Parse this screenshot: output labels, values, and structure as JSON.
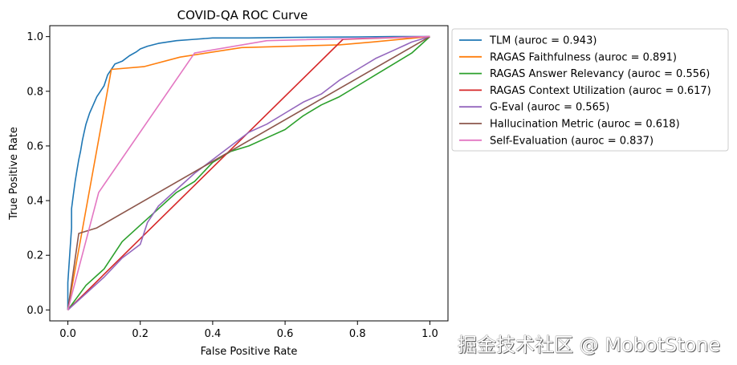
{
  "chart_data": {
    "type": "line",
    "title": "COVID-QA ROC Curve",
    "xlabel": "False Positive Rate",
    "ylabel": "True Positive Rate",
    "xlim": [
      -0.05,
      1.05
    ],
    "ylim": [
      -0.04,
      1.04
    ],
    "xticks": [
      "0.0",
      "0.2",
      "0.4",
      "0.6",
      "0.8",
      "1.0"
    ],
    "yticks": [
      "0.0",
      "0.2",
      "0.4",
      "0.6",
      "0.8",
      "1.0"
    ],
    "legend_position": "outside-right-top",
    "grid": false,
    "series": [
      {
        "name": "TLM (auroc = 0.943)",
        "color": "#1f77b4",
        "x": [
          0.0,
          0.0,
          0.005,
          0.01,
          0.01,
          0.015,
          0.02,
          0.025,
          0.03,
          0.035,
          0.04,
          0.045,
          0.05,
          0.06,
          0.07,
          0.08,
          0.09,
          0.1,
          0.11,
          0.12,
          0.13,
          0.15,
          0.17,
          0.19,
          0.2,
          0.22,
          0.25,
          0.3,
          0.35,
          0.4,
          0.45,
          0.5,
          0.6,
          0.7,
          0.8,
          0.9,
          1.0
        ],
        "y": [
          0.0,
          0.1,
          0.2,
          0.3,
          0.37,
          0.42,
          0.47,
          0.51,
          0.55,
          0.58,
          0.62,
          0.65,
          0.68,
          0.72,
          0.75,
          0.78,
          0.8,
          0.82,
          0.86,
          0.88,
          0.9,
          0.91,
          0.93,
          0.945,
          0.955,
          0.965,
          0.975,
          0.985,
          0.99,
          0.995,
          0.995,
          0.995,
          0.997,
          0.998,
          0.999,
          1.0,
          1.0
        ]
      },
      {
        "name": "RAGAS Faithfulness (auroc = 0.891)",
        "color": "#ff7f0e",
        "x": [
          0.0,
          0.12,
          0.21,
          0.31,
          0.48,
          0.75,
          0.84,
          1.0
        ],
        "y": [
          0.0,
          0.88,
          0.89,
          0.925,
          0.96,
          0.97,
          0.98,
          1.0
        ]
      },
      {
        "name": "RAGAS Answer Relevancy (auroc = 0.556)",
        "color": "#2ca02c",
        "x": [
          0.0,
          0.05,
          0.1,
          0.15,
          0.2,
          0.25,
          0.3,
          0.35,
          0.4,
          0.45,
          0.5,
          0.55,
          0.6,
          0.65,
          0.7,
          0.75,
          0.8,
          0.85,
          0.9,
          0.95,
          1.0
        ],
        "y": [
          0.0,
          0.09,
          0.15,
          0.25,
          0.31,
          0.37,
          0.43,
          0.47,
          0.54,
          0.58,
          0.6,
          0.63,
          0.66,
          0.71,
          0.75,
          0.78,
          0.82,
          0.86,
          0.9,
          0.94,
          1.0
        ]
      },
      {
        "name": "RAGAS Context Utilization (auroc = 0.617)",
        "color": "#d62728",
        "x": [
          0.0,
          0.76,
          1.0
        ],
        "y": [
          0.0,
          0.99,
          1.0
        ]
      },
      {
        "name": "G-Eval (auroc = 0.565)",
        "color": "#9467bd",
        "x": [
          0.0,
          0.05,
          0.1,
          0.15,
          0.2,
          0.22,
          0.25,
          0.3,
          0.35,
          0.4,
          0.45,
          0.5,
          0.55,
          0.6,
          0.65,
          0.7,
          0.75,
          0.8,
          0.85,
          0.9,
          0.95,
          1.0
        ],
        "y": [
          0.0,
          0.06,
          0.12,
          0.19,
          0.24,
          0.32,
          0.38,
          0.44,
          0.5,
          0.55,
          0.6,
          0.65,
          0.68,
          0.72,
          0.76,
          0.79,
          0.84,
          0.88,
          0.92,
          0.95,
          0.98,
          1.0
        ]
      },
      {
        "name": "Hallucination Metric (auroc = 0.618)",
        "color": "#8c564b",
        "x": [
          0.0,
          0.03,
          0.08,
          1.0
        ],
        "y": [
          0.0,
          0.28,
          0.3,
          1.0
        ]
      },
      {
        "name": "Self-Evaluation (auroc = 0.837)",
        "color": "#e377c2",
        "x": [
          0.0,
          0.085,
          0.35,
          0.55,
          1.0
        ],
        "y": [
          0.0,
          0.43,
          0.94,
          0.985,
          1.0
        ]
      }
    ]
  },
  "watermark": "掘金技术社区 @ MobotStone"
}
